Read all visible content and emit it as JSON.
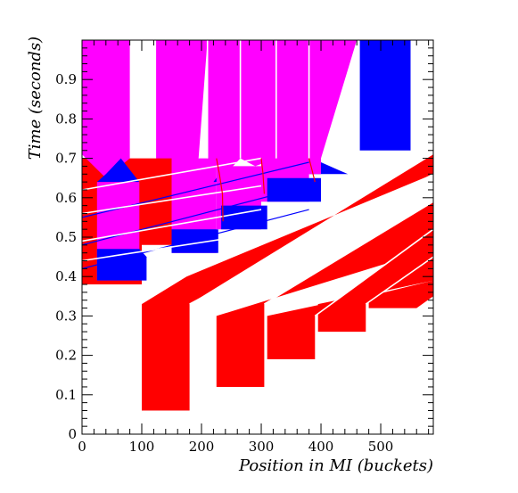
{
  "chart_data": {
    "type": "area",
    "xlabel": "Position in MI (buckets)",
    "ylabel": "Time (seconds)",
    "xlim": [
      0,
      588
    ],
    "ylim": [
      0,
      1.0
    ],
    "x_ticks": [
      0,
      100,
      200,
      300,
      400,
      500
    ],
    "y_ticks": [
      0,
      0.1,
      0.2,
      0.3,
      0.4,
      0.5,
      0.6,
      0.7,
      0.8,
      0.9
    ],
    "x_tick_labels": [
      "0",
      "100",
      "200",
      "300",
      "400",
      "500"
    ],
    "y_tick_labels": [
      "0",
      "0.1",
      "0.2",
      "0.3",
      "0.4",
      "0.5",
      "0.6",
      "0.7",
      "0.8",
      "0.9"
    ],
    "grid": false,
    "colors": {
      "red": "#ff0000",
      "magenta": "#ff00ff",
      "blue": "#0000ff",
      "white": "#ffffff"
    },
    "regions": [
      {
        "color": "red",
        "points": [
          [
            0,
            0.38
          ],
          [
            0,
            0.7
          ],
          [
            100,
            0.7
          ],
          [
            100,
            0.38
          ]
        ]
      },
      {
        "color": "magenta",
        "points": [
          [
            0,
            1.0
          ],
          [
            0,
            0.71
          ],
          [
            40,
            0.65
          ],
          [
            80,
            0.7
          ],
          [
            80,
            1.0
          ]
        ]
      },
      {
        "color": "blue",
        "points": [
          [
            25,
            0.64
          ],
          [
            40,
            0.66
          ],
          [
            65,
            0.7
          ],
          [
            96,
            0.64
          ]
        ]
      },
      {
        "color": "magenta",
        "points": [
          [
            25,
            0.64
          ],
          [
            96,
            0.64
          ],
          [
            96,
            0.39
          ],
          [
            25,
            0.39
          ]
        ]
      },
      {
        "color": "blue",
        "points": [
          [
            25,
            0.39
          ],
          [
            108,
            0.39
          ],
          [
            108,
            0.45
          ],
          [
            96,
            0.47
          ],
          [
            25,
            0.47
          ]
        ]
      },
      {
        "color": "magenta",
        "points": [
          [
            124,
            1.0
          ],
          [
            124,
            0.7
          ],
          [
            150,
            0.68
          ],
          [
            195,
            0.7
          ],
          [
            210,
            1.0
          ]
        ]
      },
      {
        "color": "red",
        "points": [
          [
            100,
            0.48
          ],
          [
            100,
            0.7
          ],
          [
            150,
            0.7
          ],
          [
            150,
            0.48
          ]
        ]
      },
      {
        "color": "magenta",
        "points": [
          [
            150,
            0.46
          ],
          [
            150,
            0.7
          ],
          [
            225,
            0.7
          ],
          [
            225,
            0.46
          ]
        ]
      },
      {
        "color": "blue",
        "points": [
          [
            150,
            0.46
          ],
          [
            228,
            0.46
          ],
          [
            228,
            0.52
          ],
          [
            150,
            0.52
          ]
        ]
      },
      {
        "color": "magenta",
        "points": [
          [
            210,
            1.0
          ],
          [
            210,
            0.7
          ],
          [
            240,
            0.66
          ],
          [
            265,
            0.7
          ],
          [
            265,
            1.0
          ]
        ]
      },
      {
        "color": "blue",
        "points": [
          [
            220,
            0.64
          ],
          [
            240,
            0.68
          ],
          [
            250,
            0.64
          ]
        ]
      },
      {
        "color": "magenta",
        "points": [
          [
            225,
            0.52
          ],
          [
            225,
            0.68
          ],
          [
            300,
            0.68
          ],
          [
            300,
            0.52
          ]
        ]
      },
      {
        "color": "blue",
        "points": [
          [
            233,
            0.52
          ],
          [
            310,
            0.52
          ],
          [
            310,
            0.58
          ],
          [
            233,
            0.58
          ]
        ]
      },
      {
        "color": "magenta",
        "points": [
          [
            265,
            1.0
          ],
          [
            265,
            0.7
          ],
          [
            290,
            0.68
          ],
          [
            325,
            0.7
          ],
          [
            325,
            1.0
          ]
        ]
      },
      {
        "color": "blue",
        "points": [
          [
            300,
            0.62
          ],
          [
            310,
            0.68
          ],
          [
            325,
            0.62
          ]
        ]
      },
      {
        "color": "magenta",
        "points": [
          [
            300,
            0.59
          ],
          [
            300,
            0.7
          ],
          [
            380,
            0.7
          ],
          [
            380,
            0.59
          ]
        ]
      },
      {
        "color": "blue",
        "points": [
          [
            310,
            0.59
          ],
          [
            400,
            0.59
          ],
          [
            400,
            0.65
          ],
          [
            310,
            0.65
          ]
        ]
      },
      {
        "color": "magenta",
        "points": [
          [
            325,
            1.0
          ],
          [
            325,
            0.7
          ],
          [
            380,
            0.66
          ],
          [
            400,
            0.7
          ],
          [
            460,
            1.0
          ]
        ]
      },
      {
        "color": "blue",
        "points": [
          [
            380,
            0.66
          ],
          [
            400,
            0.69
          ],
          [
            445,
            0.66
          ]
        ]
      },
      {
        "color": "magenta",
        "points": [
          [
            380,
            0.66
          ],
          [
            380,
            0.7
          ],
          [
            400,
            0.7
          ],
          [
            400,
            0.66
          ]
        ]
      },
      {
        "color": "blue",
        "points": [
          [
            465,
            1.0
          ],
          [
            465,
            0.72
          ],
          [
            550,
            0.72
          ],
          [
            550,
            1.0
          ]
        ]
      },
      {
        "color": "red",
        "points": [
          [
            100,
            0.33
          ],
          [
            100,
            0.06
          ],
          [
            180,
            0.06
          ],
          [
            180,
            0.33
          ],
          [
            588,
            0.71
          ],
          [
            588,
            0.66
          ],
          [
            175,
            0.4
          ]
        ]
      },
      {
        "color": "red",
        "points": [
          [
            225,
            0.12
          ],
          [
            305,
            0.12
          ],
          [
            305,
            0.33
          ],
          [
            588,
            0.59
          ],
          [
            588,
            0.47
          ],
          [
            225,
            0.3
          ]
        ]
      },
      {
        "color": "red",
        "points": [
          [
            310,
            0.19
          ],
          [
            390,
            0.19
          ],
          [
            390,
            0.3
          ],
          [
            588,
            0.52
          ],
          [
            588,
            0.39
          ],
          [
            310,
            0.3
          ]
        ]
      },
      {
        "color": "red",
        "points": [
          [
            395,
            0.26
          ],
          [
            475,
            0.26
          ],
          [
            475,
            0.33
          ],
          [
            588,
            0.45
          ],
          [
            588,
            0.39
          ],
          [
            395,
            0.33
          ]
        ]
      },
      {
        "color": "red",
        "points": [
          [
            480,
            0.32
          ],
          [
            560,
            0.32
          ],
          [
            588,
            0.35
          ],
          [
            588,
            0.39
          ],
          [
            480,
            0.35
          ]
        ]
      }
    ],
    "lines": [
      {
        "color": "blue",
        "points": [
          [
            0,
            0.55
          ],
          [
            380,
            0.69
          ]
        ]
      },
      {
        "color": "blue",
        "points": [
          [
            0,
            0.48
          ],
          [
            380,
            0.63
          ]
        ]
      },
      {
        "color": "blue",
        "points": [
          [
            0,
            0.42
          ],
          [
            380,
            0.57
          ]
        ]
      },
      {
        "color": "white",
        "points": [
          [
            0,
            0.62
          ],
          [
            300,
            0.7
          ]
        ]
      },
      {
        "color": "white",
        "points": [
          [
            0,
            0.56
          ],
          [
            300,
            0.63
          ]
        ]
      },
      {
        "color": "white",
        "points": [
          [
            0,
            0.49
          ],
          [
            300,
            0.57
          ]
        ]
      },
      {
        "color": "white",
        "points": [
          [
            0,
            0.44
          ],
          [
            300,
            0.51
          ]
        ]
      },
      {
        "color": "white",
        "points": [
          [
            180,
            0.33
          ],
          [
            588,
            0.66
          ]
        ]
      },
      {
        "color": "white",
        "points": [
          [
            305,
            0.33
          ],
          [
            588,
            0.59
          ]
        ]
      },
      {
        "color": "white",
        "points": [
          [
            390,
            0.3
          ],
          [
            588,
            0.52
          ]
        ]
      },
      {
        "color": "white",
        "points": [
          [
            475,
            0.33
          ],
          [
            588,
            0.45
          ]
        ]
      },
      {
        "color": "white",
        "points": [
          [
            210,
            1.0
          ],
          [
            210,
            0.7
          ]
        ]
      },
      {
        "color": "white",
        "points": [
          [
            265,
            1.0
          ],
          [
            265,
            0.7
          ]
        ]
      },
      {
        "color": "white",
        "points": [
          [
            325,
            1.0
          ],
          [
            325,
            0.7
          ]
        ]
      },
      {
        "color": "white",
        "points": [
          [
            380,
            1.0
          ],
          [
            380,
            0.7
          ]
        ]
      },
      {
        "color": "red",
        "points": [
          [
            225,
            0.7
          ],
          [
            230,
            0.66
          ],
          [
            235,
            0.61
          ],
          [
            236,
            0.54
          ]
        ]
      },
      {
        "color": "red",
        "points": [
          [
            300,
            0.7
          ],
          [
            303,
            0.66
          ],
          [
            305,
            0.61
          ]
        ]
      },
      {
        "color": "red",
        "points": [
          [
            380,
            0.7
          ],
          [
            385,
            0.67
          ],
          [
            390,
            0.64
          ]
        ]
      }
    ]
  }
}
